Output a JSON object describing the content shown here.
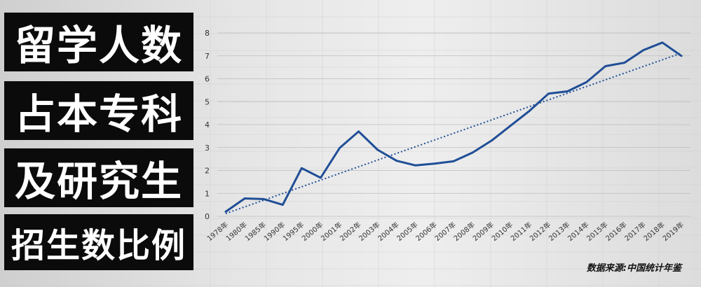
{
  "title_lines": [
    "留学人数",
    "占本专科",
    "及研究生",
    "招生数比例"
  ],
  "source": "数据来源:中国统计年鉴",
  "chart_data": {
    "type": "line",
    "x": [
      "1978年",
      "1980年",
      "1985年",
      "1990年",
      "1995年",
      "2000年",
      "2001年",
      "2002年",
      "2003年",
      "2004年",
      "2005年",
      "2006年",
      "2007年",
      "2008年",
      "2009年",
      "2010年",
      "2011年",
      "2012年",
      "2013年",
      "2014年",
      "2015年",
      "2016年",
      "2017年",
      "2018年",
      "2019年"
    ],
    "series": [
      {
        "values": [
          0.2,
          0.78,
          0.75,
          0.5,
          2.1,
          1.68,
          2.98,
          3.7,
          2.9,
          2.42,
          2.22,
          2.3,
          2.4,
          2.78,
          3.3,
          3.95,
          4.6,
          5.35,
          5.45,
          5.85,
          6.55,
          6.7,
          7.25,
          7.58,
          7.0
        ],
        "color": "#1f4e96"
      }
    ],
    "trendline": {
      "start": 0.12,
      "end": 7.12,
      "color": "#1f4e96",
      "style": "dotted"
    },
    "ylim": [
      0,
      8
    ],
    "yticks": [
      "0",
      "1",
      "2",
      "3",
      "4",
      "5",
      "6",
      "7",
      "8"
    ],
    "grid": true
  }
}
